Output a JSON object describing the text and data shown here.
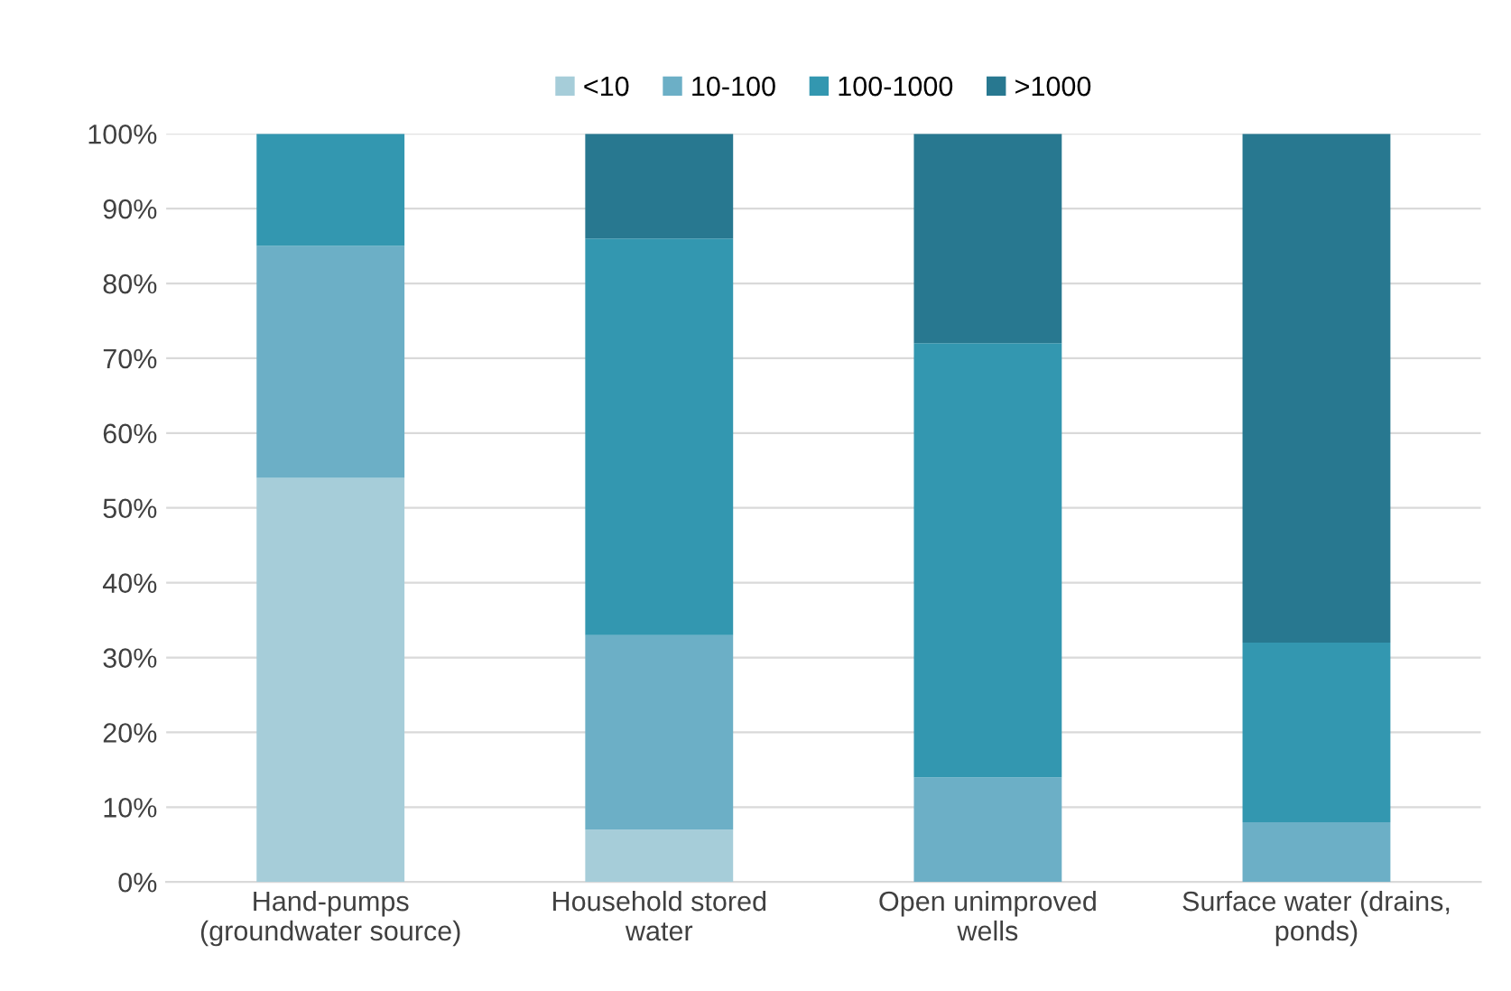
{
  "chart_data": {
    "type": "bar",
    "stacked": true,
    "categories": [
      "Hand-pumps\n(groundwater source)",
      "Household stored\nwater",
      "Open unimproved\nwells",
      "Surface water (drains,\nponds)"
    ],
    "series": [
      {
        "name": "<10",
        "color": "#a6cdd9",
        "values": [
          54,
          7,
          0,
          0
        ]
      },
      {
        "name": "10-100",
        "color": "#6cafc6",
        "values": [
          31,
          26,
          14,
          8
        ]
      },
      {
        "name": "100-1000",
        "color": "#3397b0",
        "values": [
          15,
          53,
          58,
          24
        ]
      },
      {
        "name": ">1000",
        "color": "#287890",
        "values": [
          0,
          14,
          28,
          68
        ]
      }
    ],
    "ylim": [
      0,
      100
    ],
    "yticks": [
      {
        "value": 0,
        "label": "0%"
      },
      {
        "value": 10,
        "label": "10%"
      },
      {
        "value": 20,
        "label": "20%"
      },
      {
        "value": 30,
        "label": "30%"
      },
      {
        "value": 40,
        "label": "40%"
      },
      {
        "value": 50,
        "label": "50%"
      },
      {
        "value": 60,
        "label": "60%"
      },
      {
        "value": 70,
        "label": "70%"
      },
      {
        "value": 80,
        "label": "80%"
      },
      {
        "value": 90,
        "label": "90%"
      },
      {
        "value": 100,
        "label": "100%"
      }
    ],
    "grid": "y",
    "legend": "top"
  }
}
